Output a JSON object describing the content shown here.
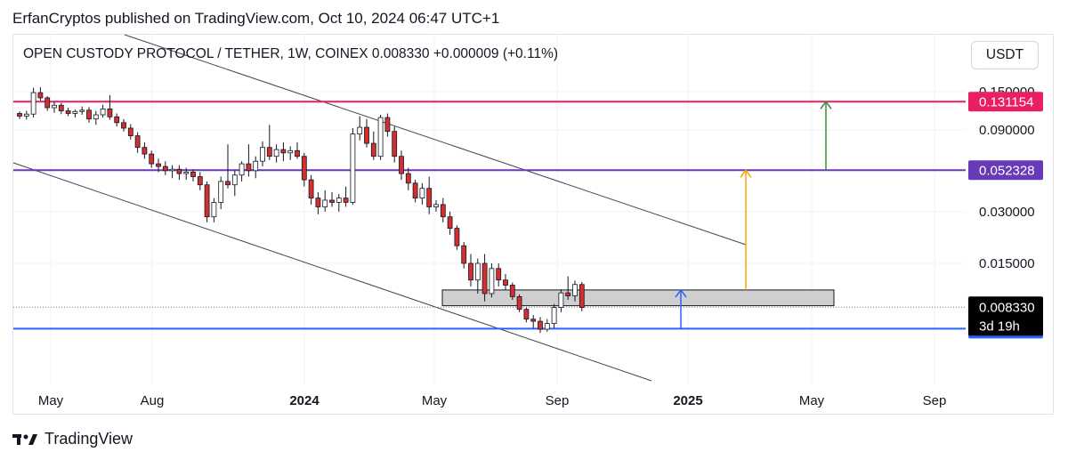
{
  "header": {
    "published_by": "ErfanCryptos published on TradingView.com, Oct 10, 2024 06:47 UTC+1"
  },
  "legend": {
    "text": "OPEN CUSTODY PROTOCOL / TETHER, 1W, COINEX  0.008330  +0.000009 (+0.11%)"
  },
  "currency_button": {
    "label": "USDT"
  },
  "branding": {
    "name": "TradingView",
    "icon": "tradingview-logo-icon"
  },
  "chart_data": {
    "type": "candlestick",
    "title": "OPEN CUSTODY PROTOCOL / TETHER, 1W, COINEX",
    "scale": "log",
    "y_ticks": [
      "0.150000",
      "0.090000",
      "0.030000",
      "0.015000"
    ],
    "x_ticks": [
      {
        "label": "May",
        "bold": false
      },
      {
        "label": "Aug",
        "bold": false
      },
      {
        "label": "2024",
        "bold": true
      },
      {
        "label": "May",
        "bold": false
      },
      {
        "label": "Sep",
        "bold": false
      },
      {
        "label": "2025",
        "bold": true
      },
      {
        "label": "May",
        "bold": false
      },
      {
        "label": "Sep",
        "bold": false
      }
    ],
    "last_price": "0.008330",
    "countdown": "3d 19h",
    "horizontal_levels": [
      {
        "value": 0.131154,
        "label": "0.131154",
        "color": "#e91e63"
      },
      {
        "value": 0.052328,
        "label": "0.052328",
        "color": "#673ab7"
      },
      {
        "value": 0.006248,
        "label": "0.006248",
        "color": "#2962ff"
      }
    ],
    "support_zone": {
      "low": 0.0085,
      "high": 0.0105
    },
    "target_arrows": [
      {
        "from": 0.0105,
        "to": 0.052328,
        "color": "#f7a600"
      },
      {
        "from": 0.052328,
        "to": 0.131154,
        "color": "#388e3c"
      },
      {
        "from": 0.006248,
        "to": 0.0105,
        "color": "#2962ff"
      }
    ],
    "channel": {
      "upper": [
        [
          0,
          0.0
        ],
        [
          1,
          1.0
        ]
      ],
      "lower": [
        [
          0,
          0.0
        ],
        [
          1,
          1.0
        ]
      ]
    },
    "candles": [
      [
        0.112,
        0.115,
        0.104,
        0.108
      ],
      [
        0.108,
        0.116,
        0.103,
        0.111
      ],
      [
        0.111,
        0.158,
        0.106,
        0.148
      ],
      [
        0.148,
        0.159,
        0.133,
        0.138
      ],
      [
        0.138,
        0.141,
        0.116,
        0.121
      ],
      [
        0.121,
        0.131,
        0.113,
        0.125
      ],
      [
        0.125,
        0.129,
        0.111,
        0.116
      ],
      [
        0.116,
        0.121,
        0.108,
        0.112
      ],
      [
        0.112,
        0.118,
        0.106,
        0.115
      ],
      [
        0.115,
        0.123,
        0.11,
        0.117
      ],
      [
        0.117,
        0.122,
        0.099,
        0.104
      ],
      [
        0.104,
        0.116,
        0.096,
        0.11
      ],
      [
        0.11,
        0.126,
        0.106,
        0.119
      ],
      [
        0.119,
        0.143,
        0.103,
        0.107
      ],
      [
        0.107,
        0.112,
        0.094,
        0.099
      ],
      [
        0.099,
        0.104,
        0.088,
        0.092
      ],
      [
        0.092,
        0.097,
        0.079,
        0.083
      ],
      [
        0.083,
        0.087,
        0.066,
        0.071
      ],
      [
        0.071,
        0.076,
        0.061,
        0.065
      ],
      [
        0.065,
        0.068,
        0.054,
        0.057
      ],
      [
        0.057,
        0.061,
        0.051,
        0.055
      ],
      [
        0.055,
        0.059,
        0.049,
        0.052
      ],
      [
        0.052,
        0.056,
        0.047,
        0.053
      ],
      [
        0.053,
        0.056,
        0.046,
        0.05
      ],
      [
        0.05,
        0.054,
        0.046,
        0.051
      ],
      [
        0.051,
        0.053,
        0.045,
        0.048
      ],
      [
        0.048,
        0.051,
        0.04,
        0.043
      ],
      [
        0.043,
        0.045,
        0.026,
        0.028
      ],
      [
        0.028,
        0.036,
        0.026,
        0.034
      ],
      [
        0.034,
        0.048,
        0.031,
        0.045
      ],
      [
        0.045,
        0.074,
        0.041,
        0.043
      ],
      [
        0.043,
        0.052,
        0.037,
        0.049
      ],
      [
        0.049,
        0.059,
        0.045,
        0.057
      ],
      [
        0.057,
        0.074,
        0.048,
        0.052
      ],
      [
        0.052,
        0.063,
        0.047,
        0.059
      ],
      [
        0.059,
        0.077,
        0.055,
        0.071
      ],
      [
        0.071,
        0.096,
        0.06,
        0.063
      ],
      [
        0.063,
        0.074,
        0.058,
        0.069
      ],
      [
        0.069,
        0.076,
        0.059,
        0.066
      ],
      [
        0.066,
        0.072,
        0.06,
        0.068
      ],
      [
        0.068,
        0.076,
        0.061,
        0.063
      ],
      [
        0.063,
        0.066,
        0.042,
        0.046
      ],
      [
        0.046,
        0.049,
        0.033,
        0.036
      ],
      [
        0.036,
        0.039,
        0.029,
        0.032
      ],
      [
        0.032,
        0.04,
        0.03,
        0.035
      ],
      [
        0.035,
        0.039,
        0.032,
        0.034
      ],
      [
        0.034,
        0.038,
        0.03,
        0.036
      ],
      [
        0.036,
        0.042,
        0.032,
        0.034
      ],
      [
        0.034,
        0.092,
        0.033,
        0.085
      ],
      [
        0.085,
        0.108,
        0.078,
        0.093
      ],
      [
        0.093,
        0.104,
        0.071,
        0.075
      ],
      [
        0.075,
        0.088,
        0.06,
        0.063
      ],
      [
        0.063,
        0.11,
        0.06,
        0.106
      ],
      [
        0.106,
        0.112,
        0.082,
        0.088
      ],
      [
        0.088,
        0.094,
        0.058,
        0.063
      ],
      [
        0.063,
        0.068,
        0.046,
        0.05
      ],
      [
        0.05,
        0.054,
        0.04,
        0.044
      ],
      [
        0.044,
        0.046,
        0.034,
        0.036
      ],
      [
        0.036,
        0.044,
        0.033,
        0.041
      ],
      [
        0.041,
        0.048,
        0.029,
        0.032
      ],
      [
        0.032,
        0.035,
        0.03,
        0.033
      ],
      [
        0.033,
        0.036,
        0.026,
        0.028
      ],
      [
        0.028,
        0.03,
        0.022,
        0.024
      ],
      [
        0.024,
        0.025,
        0.018,
        0.019
      ],
      [
        0.019,
        0.02,
        0.014,
        0.015
      ],
      [
        0.015,
        0.017,
        0.011,
        0.012
      ],
      [
        0.012,
        0.016,
        0.01,
        0.015
      ],
      [
        0.015,
        0.017,
        0.009,
        0.01
      ],
      [
        0.01,
        0.015,
        0.0095,
        0.014
      ],
      [
        0.014,
        0.015,
        0.011,
        0.012
      ],
      [
        0.012,
        0.013,
        0.0105,
        0.0112
      ],
      [
        0.0112,
        0.0116,
        0.0092,
        0.0096
      ],
      [
        0.0096,
        0.0099,
        0.0078,
        0.0081
      ],
      [
        0.0081,
        0.0083,
        0.0068,
        0.0071
      ],
      [
        0.0071,
        0.0075,
        0.0063,
        0.0069
      ],
      [
        0.0069,
        0.0073,
        0.0059,
        0.0062
      ],
      [
        0.0062,
        0.0071,
        0.006,
        0.0067
      ],
      [
        0.0067,
        0.0087,
        0.0063,
        0.0083
      ],
      [
        0.0083,
        0.0106,
        0.0078,
        0.0101
      ],
      [
        0.0101,
        0.0126,
        0.0092,
        0.0097
      ],
      [
        0.0097,
        0.0119,
        0.009,
        0.0113
      ],
      [
        0.0113,
        0.0117,
        0.0079,
        0.0083
      ]
    ]
  },
  "colors": {
    "up": "#ffffff",
    "down": "#d32f2f",
    "wick": "#131722",
    "grid": "#f0f3fa",
    "zone_fill": "#cfcfcf"
  }
}
